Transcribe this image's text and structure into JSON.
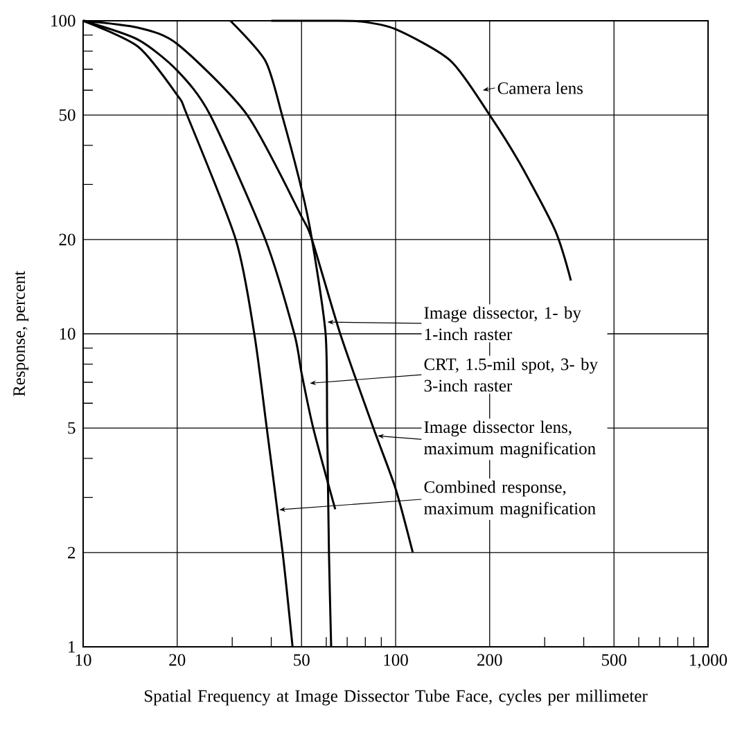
{
  "chart_data": {
    "type": "line",
    "xlabel": "Spatial Frequency at Image Dissector Tube Face, cycles per millimeter",
    "ylabel": "Response, percent",
    "log": "xy",
    "grid": true,
    "legend": "right",
    "xlim": [
      10,
      1000
    ],
    "ylim": [
      1,
      100
    ],
    "xticks": [
      10,
      20,
      {
        "value": 30,
        "label": null
      },
      {
        "value": 40,
        "label": null
      },
      50,
      {
        "value": 60,
        "label": null
      },
      {
        "value": 70,
        "label": null
      },
      {
        "value": 80,
        "label": null
      },
      {
        "value": 90,
        "label": null
      },
      100,
      200,
      {
        "value": 300,
        "label": null
      },
      {
        "value": 400,
        "label": null
      },
      500,
      {
        "value": 600,
        "label": null
      },
      {
        "value": 700,
        "label": null
      },
      {
        "value": 800,
        "label": null
      },
      {
        "value": 900,
        "label": null
      },
      {
        "value": 1000,
        "label": "1,000"
      }
    ],
    "yticks": [
      1,
      2,
      {
        "value": 3,
        "label": null
      },
      {
        "value": 4,
        "label": null
      },
      5,
      {
        "value": 6,
        "label": null
      },
      {
        "value": 7,
        "label": null
      },
      {
        "value": 8,
        "label": null
      },
      {
        "value": 9,
        "label": null
      },
      10,
      20,
      {
        "value": 30,
        "label": null
      },
      {
        "value": 40,
        "label": null
      },
      50,
      {
        "value": 60,
        "label": null
      },
      {
        "value": 70,
        "label": null
      },
      {
        "value": 80,
        "label": null
      },
      {
        "value": 90,
        "label": null
      },
      100
    ],
    "series": [
      {
        "name": "Camera lens",
        "color": "#000000",
        "x": [
          40,
          60,
          77,
          100,
          150,
          200,
          250,
          324,
          364
        ],
        "values": [
          100,
          100,
          99.5,
          94,
          74.5,
          50,
          35,
          21.4,
          14.8
        ]
      },
      {
        "name": "Image dissector, 1- by 1-inch raster",
        "color": "#000000",
        "x": [
          29.6,
          38.3,
          43.3,
          50,
          54,
          59.7,
          60.4,
          61.2,
          62.2
        ],
        "values": [
          100,
          74.5,
          50,
          29,
          20,
          10,
          5,
          2,
          1
        ]
      },
      {
        "name": "CRT, 1.5-mil spot, 3- by 3-inch raster",
        "color": "#000000",
        "x": [
          10,
          15,
          20.1,
          25.5,
          38.3,
          47.4,
          50,
          54.5,
          64.1
        ],
        "values": [
          100,
          87,
          69,
          50,
          20,
          10,
          7.5,
          5,
          2.75
        ]
      },
      {
        "name": "Image dissector lens, maximum magnification",
        "color": "#000000",
        "x": [
          10,
          15,
          20.1,
          33.5,
          50,
          54,
          66.5,
          84.9,
          100,
          113.5
        ],
        "values": [
          100,
          95,
          84,
          50,
          23.7,
          20,
          10,
          5,
          3.2,
          2
        ]
      },
      {
        "name": "Combined response, maximum magnification",
        "color": "#000000",
        "x": [
          10,
          15,
          20.1,
          21.5,
          30.8,
          35.3,
          38.7,
          43.5,
          46.8
        ],
        "values": [
          100,
          82.6,
          57.5,
          50,
          20,
          10,
          5,
          2,
          1
        ]
      }
    ]
  }
}
